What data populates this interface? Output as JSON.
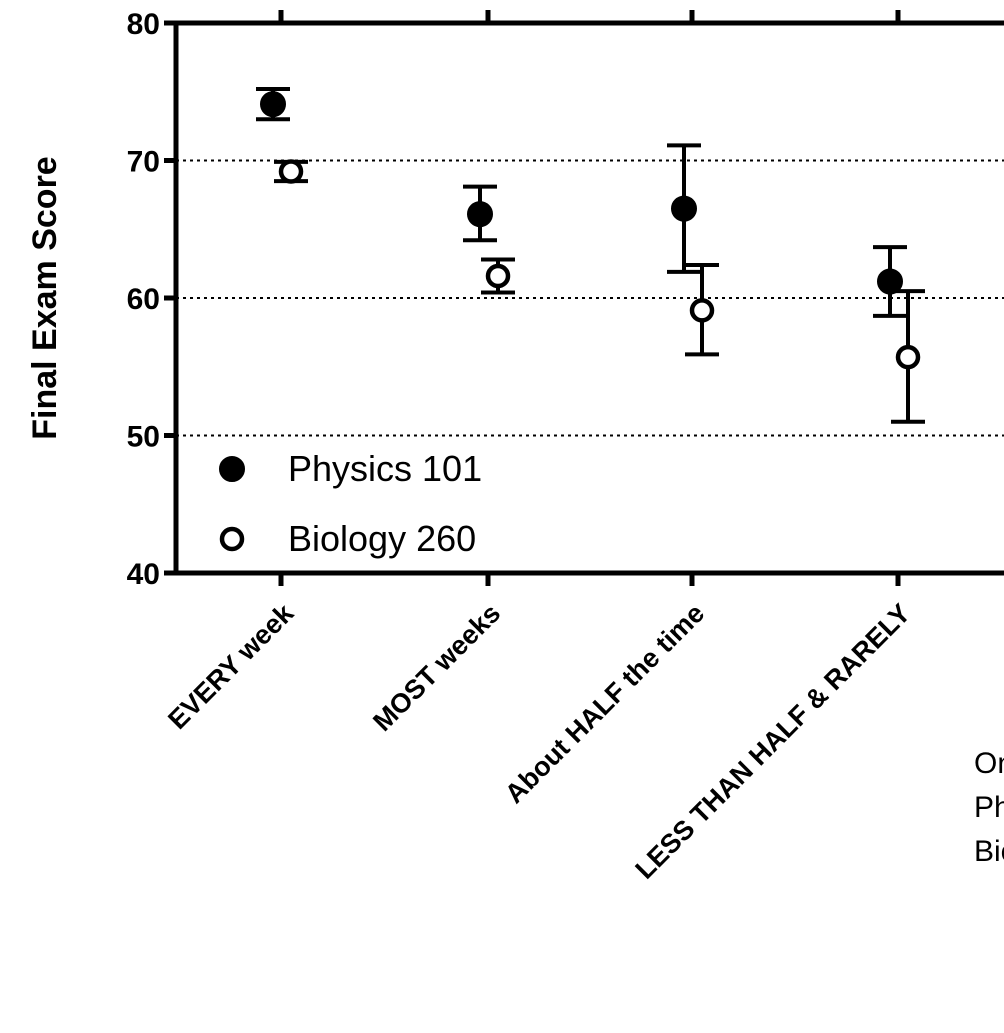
{
  "chart_data": {
    "type": "scatter",
    "categories": [
      "EVERY week",
      "MOST weeks",
      "About HALF the time",
      "LESS THAN HALF & RARELY"
    ],
    "ylabel": "Final Exam  Score",
    "ylim": [
      40,
      80
    ],
    "yticks": [
      40,
      50,
      60,
      70,
      80
    ],
    "grid": "dotted horizontal at 50, 60, 70",
    "legend_position": "bottom-left",
    "series": [
      {
        "name": "Physics 101",
        "marker": "filled-circle",
        "values": [
          74.1,
          66.1,
          66.5,
          61.2
        ],
        "error_low": [
          73.0,
          64.2,
          61.9,
          58.7
        ],
        "error_high": [
          75.2,
          68.1,
          71.1,
          63.7
        ]
      },
      {
        "name": "Biology 260",
        "marker": "open-circle",
        "values": [
          69.2,
          61.6,
          59.1,
          55.7
        ],
        "error_low": [
          68.5,
          60.4,
          55.9,
          51.0
        ],
        "error_high": [
          69.9,
          62.8,
          62.4,
          60.5
        ]
      }
    ],
    "colors": {
      "marker": "#000000",
      "grid": "#000000"
    }
  },
  "side_note": {
    "lines": [
      "On",
      "Phy",
      "Bio"
    ]
  }
}
